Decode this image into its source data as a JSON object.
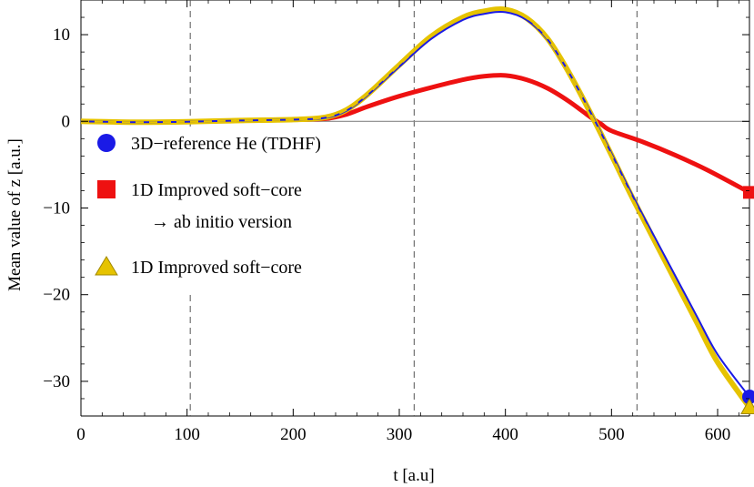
{
  "chart_data": {
    "type": "line",
    "xlabel": "t  [a.u]",
    "ylabel": "Mean value of  z   [a.u.]",
    "xlim": [
      0,
      630
    ],
    "ylim": [
      -34,
      14
    ],
    "x_ticks": [
      "0",
      "100",
      "200",
      "300",
      "400",
      "500",
      "600"
    ],
    "y_ticks": [
      "10",
      "0",
      "−10",
      "−20",
      "−30"
    ],
    "vertical_dashed_lines_at": [
      103,
      314,
      524
    ],
    "legend": [
      {
        "label": "3D−reference He (TDHF)",
        "marker": "circle",
        "color": "#1a1ae6"
      },
      {
        "label": "1D Improved soft−core",
        "sublabel": "→ ab initio version",
        "marker": "square",
        "color": "#ee1111"
      },
      {
        "label": "1D Improved soft−core",
        "marker": "triangle",
        "color": "#e6c300"
      }
    ],
    "series": [
      {
        "color": "#1a1ae6",
        "x": [
          0,
          50,
          100,
          150,
          200,
          230,
          250,
          270,
          300,
          330,
          360,
          380,
          400,
          420,
          440,
          460,
          480,
          500,
          520,
          550,
          580,
          600,
          630
        ],
        "y": [
          0,
          -0.1,
          -0.05,
          0.1,
          0.2,
          0.4,
          1.2,
          3.0,
          6.3,
          9.5,
          11.7,
          12.4,
          12.6,
          11.7,
          9.4,
          5.6,
          1.1,
          -3.7,
          -8.6,
          -15.5,
          -22.4,
          -26.9,
          -31.8
        ]
      },
      {
        "color": "#ee1111",
        "x": [
          0,
          50,
          100,
          150,
          200,
          230,
          250,
          270,
          300,
          330,
          360,
          380,
          400,
          420,
          440,
          460,
          480,
          490,
          500,
          530,
          560,
          590,
          630
        ],
        "y": [
          0,
          -0.1,
          -0.05,
          0.1,
          0.2,
          0.3,
          0.8,
          1.7,
          2.9,
          3.9,
          4.8,
          5.2,
          5.3,
          4.8,
          3.8,
          2.3,
          0.5,
          -0.3,
          -1.1,
          -2.4,
          -3.9,
          -5.6,
          -8.2
        ]
      },
      {
        "color": "#e6c300",
        "x": [
          0,
          50,
          100,
          150,
          200,
          230,
          250,
          270,
          300,
          330,
          360,
          380,
          400,
          420,
          440,
          460,
          480,
          500,
          520,
          550,
          580,
          600,
          630
        ],
        "y": [
          0,
          -0.1,
          -0.05,
          0.1,
          0.2,
          0.45,
          1.3,
          3.1,
          6.5,
          9.8,
          12.0,
          12.7,
          12.9,
          11.9,
          9.5,
          5.6,
          1.0,
          -3.9,
          -8.9,
          -16.0,
          -23.1,
          -27.8,
          -33.0
        ]
      }
    ],
    "end_markers": [
      {
        "series": 0,
        "x": 630,
        "y": -31.8,
        "marker": "circle"
      },
      {
        "series": 1,
        "x": 630,
        "y": -8.2,
        "marker": "square"
      },
      {
        "series": 2,
        "x": 630,
        "y": -33.0,
        "marker": "triangle"
      }
    ]
  }
}
